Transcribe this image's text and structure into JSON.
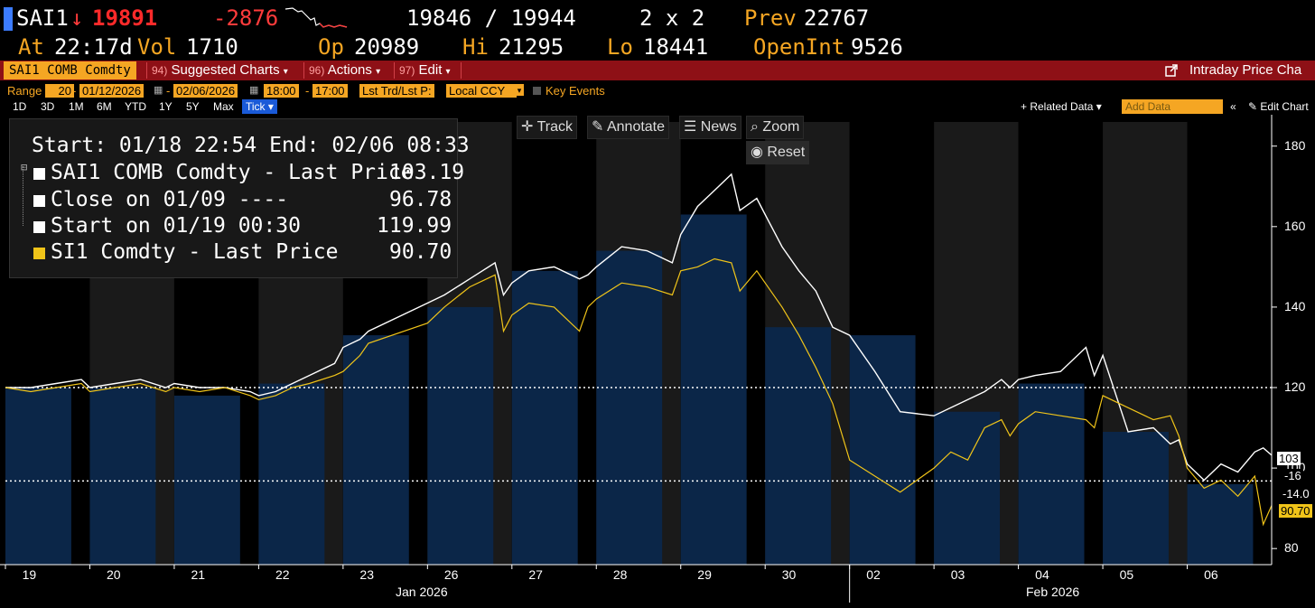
{
  "quote": {
    "ticker": "SAI1",
    "arrow": "↓",
    "last": "19891",
    "change": "-2876",
    "bid_ask": "19846 / 19944",
    "size": "2 x 2",
    "prev_label": "Prev",
    "prev": "22767",
    "at_label": "At",
    "time": "22:17d",
    "vol_label": "Vol",
    "vol": "1710",
    "op_label": "Op",
    "op": "20989",
    "hi_label": "Hi",
    "hi": "21295",
    "lo_label": "Lo",
    "lo": "18441",
    "oi_label": "OpenInt",
    "oi": "9526"
  },
  "funcbar": {
    "ticker": "SAI1 COMB Comdty",
    "suggested_num": "94)",
    "suggested": "Suggested Charts",
    "actions_num": "96)",
    "actions": "Actions",
    "edit_num": "97)",
    "edit": "Edit",
    "right_title": "Intraday Price Cha"
  },
  "rangebar": {
    "range_label": "Range",
    "range_value": "20",
    "start_date": "01/12/2026",
    "end_date": "02/06/2026",
    "start_time": "18:00",
    "end_time": "17:00",
    "field": "Lst Trd/Lst P:",
    "currency": "Local CCY",
    "key_events": "Key Events"
  },
  "periods": [
    "1D",
    "3D",
    "1M",
    "6M",
    "YTD",
    "1Y",
    "5Y",
    "Max"
  ],
  "tick_button": "Tick ▾",
  "right_tools": {
    "related": "+ Related Data ▾",
    "add_data_placeholder": "Add Data",
    "collapse": "«",
    "edit_chart": "✎ Edit Chart"
  },
  "toolbar": {
    "track": "Track",
    "annotate": "Annotate",
    "news": "News",
    "zoom": "Zoom",
    "reset": "Reset"
  },
  "legend": {
    "range_text": "Start: 01/18 22:54 End: 02/06 08:33",
    "rows": [
      {
        "label": "SAI1 COMB Comdty - Last Price",
        "value": "103.19",
        "color": "#ffffff"
      },
      {
        "label": "Close on 01/09 ----",
        "value": "96.78",
        "color": "#ffffff"
      },
      {
        "label": "Start on 01/19 00:30",
        "value": "119.99",
        "color": "#ffffff"
      },
      {
        "label": "SI1 Comdty - Last Price",
        "value": "90.70",
        "color": "#f0c419"
      }
    ]
  },
  "price_tags": [
    "103",
    "-16",
    "-14.0",
    "90.70"
  ],
  "colors": {
    "session_fill": "#0b2648",
    "saI1_line": "#ffffff",
    "si1_line": "#f0c419",
    "accent_amber": "#f5a623",
    "funcbar_red": "#8e1016"
  },
  "chart_data": {
    "type": "area",
    "x_tick_labels": [
      "19",
      "20",
      "21",
      "22",
      "23",
      "26",
      "27",
      "28",
      "29",
      "30",
      "02",
      "03",
      "04",
      "05",
      "06"
    ],
    "month_labels": [
      "Jan 2026",
      "Feb 2026"
    ],
    "y_ticks": [
      80,
      100,
      120,
      140,
      160,
      180
    ],
    "ylim": [
      76,
      186
    ],
    "reference_lines": [
      120,
      96.78
    ],
    "sessions": [
      {
        "day": "19",
        "close": 120
      },
      {
        "day": "20",
        "close": 120
      },
      {
        "day": "21",
        "close": 118
      },
      {
        "day": "22",
        "close": 121
      },
      {
        "day": "23",
        "close": 133
      },
      {
        "day": "26",
        "close": 140
      },
      {
        "day": "27",
        "close": 149
      },
      {
        "day": "28",
        "close": 154
      },
      {
        "day": "29",
        "close": 163
      },
      {
        "day": "30",
        "close": 135
      },
      {
        "day": "02",
        "close": 133
      },
      {
        "day": "03",
        "close": 114
      },
      {
        "day": "04",
        "close": 121
      },
      {
        "day": "05",
        "close": 109
      },
      {
        "day": "06",
        "close": 96
      }
    ],
    "series": [
      {
        "name": "SAI1 COMB Comdty - Last Price",
        "x": [
          19.0,
          19.3,
          19.6,
          19.9,
          20.0,
          20.3,
          20.6,
          20.9,
          21.0,
          21.3,
          21.6,
          21.9,
          22.0,
          22.2,
          22.4,
          22.6,
          22.9,
          23.0,
          23.3,
          23.6,
          23.9,
          26.0,
          26.2,
          26.5,
          26.8,
          26.9,
          27.0,
          27.2,
          27.5,
          27.8,
          27.9,
          28.0,
          28.3,
          28.6,
          28.9,
          29.0,
          29.2,
          29.4,
          29.6,
          29.7,
          29.9,
          30.0,
          30.2,
          30.4,
          30.6,
          30.8,
          31.0,
          31.3,
          31.6,
          32.0,
          32.2,
          32.4,
          32.6,
          32.8,
          32.9,
          33.0,
          33.2,
          33.5,
          33.8,
          33.9,
          34.0,
          34.3,
          34.6,
          34.8,
          34.9,
          35.0,
          35.2,
          35.4,
          35.6,
          35.8,
          35.9,
          36.0
        ],
        "values": [
          120,
          120,
          121,
          122,
          120,
          121,
          122,
          120,
          121,
          120,
          120,
          119,
          118,
          119,
          121,
          123,
          126,
          130,
          131,
          132,
          134,
          141,
          143,
          147,
          151,
          143,
          146,
          149,
          150,
          147,
          148,
          150,
          155,
          154,
          151,
          158,
          165,
          169,
          173,
          164,
          167,
          163,
          155,
          149,
          144,
          135,
          133,
          124,
          114,
          113,
          115,
          117,
          119,
          122,
          120,
          122,
          123,
          124,
          130,
          123,
          128,
          109,
          110,
          106,
          107,
          101,
          97,
          101,
          99,
          104,
          105,
          103.19
        ]
      },
      {
        "name": "SI1 Comdty - Last Price",
        "x": [
          19.0,
          19.3,
          19.6,
          19.9,
          20.0,
          20.3,
          20.6,
          20.9,
          21.0,
          21.3,
          21.6,
          21.9,
          22.0,
          22.2,
          22.4,
          22.6,
          22.9,
          23.0,
          23.3,
          23.6,
          23.9,
          26.0,
          26.2,
          26.5,
          26.8,
          26.9,
          27.0,
          27.2,
          27.5,
          27.8,
          27.9,
          28.0,
          28.3,
          28.6,
          28.9,
          29.0,
          29.2,
          29.4,
          29.6,
          29.7,
          29.9,
          30.0,
          30.2,
          30.4,
          30.6,
          30.8,
          31.0,
          31.3,
          31.6,
          32.0,
          32.2,
          32.4,
          32.6,
          32.8,
          32.9,
          33.0,
          33.2,
          33.5,
          33.8,
          33.9,
          34.0,
          34.3,
          34.6,
          34.8,
          34.9,
          35.0,
          35.2,
          35.4,
          35.6,
          35.8,
          35.9,
          36.0
        ],
        "values": [
          120,
          119,
          120,
          121,
          119,
          120,
          121,
          119,
          120,
          119,
          120,
          118,
          117,
          118,
          120,
          121,
          123,
          124,
          126,
          128,
          131,
          136,
          140,
          145,
          148,
          134,
          138,
          141,
          140,
          134,
          140,
          142,
          146,
          145,
          143,
          149,
          150,
          152,
          151,
          144,
          149,
          146,
          140,
          133,
          125,
          116,
          102,
          98,
          94,
          100,
          104,
          102,
          110,
          112,
          108,
          111,
          114,
          113,
          112,
          110,
          118,
          115,
          112,
          113,
          108,
          100,
          95,
          97,
          93,
          98,
          86,
          90.7
        ]
      }
    ]
  }
}
